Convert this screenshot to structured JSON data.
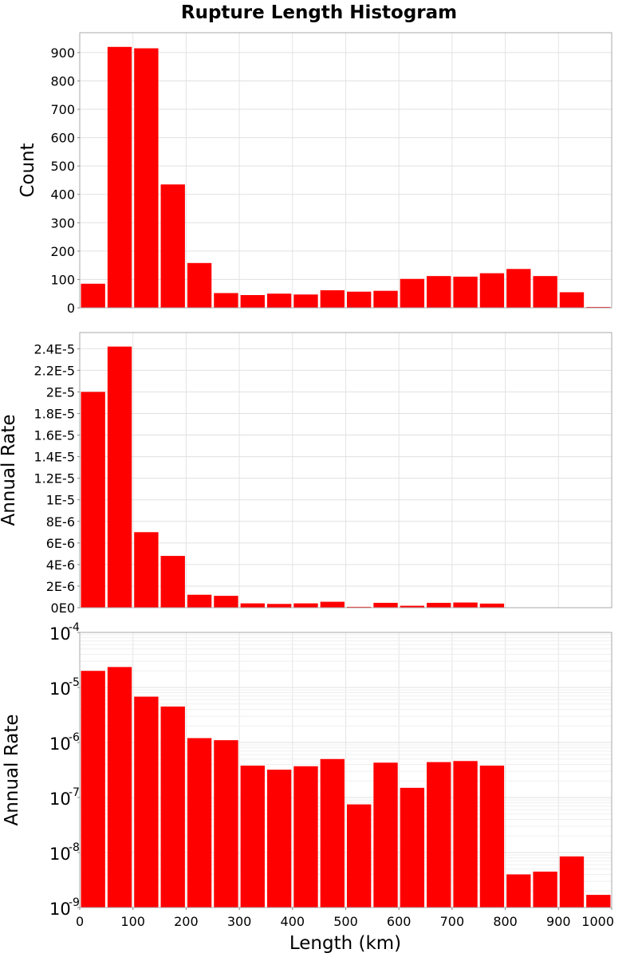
{
  "chart_data": {
    "type": "bar",
    "title": "Rupture Length Histogram",
    "xlabel": "Length (km)",
    "xlim": [
      0,
      1000
    ],
    "x_ticks": [
      "0",
      "100",
      "200",
      "300",
      "400",
      "500",
      "600",
      "700",
      "800",
      "900",
      "1000"
    ],
    "bin_width": 50,
    "bin_centers": [
      25,
      75,
      125,
      175,
      225,
      275,
      325,
      375,
      425,
      475,
      525,
      575,
      625,
      675,
      725,
      775,
      825,
      875,
      925,
      975
    ],
    "color": "#ff0000",
    "panels": [
      {
        "ylabel": "Count",
        "scale": "linear",
        "ylim": [
          0,
          970
        ],
        "y_ticks": [
          "0",
          "100",
          "200",
          "300",
          "400",
          "500",
          "600",
          "700",
          "800",
          "900"
        ],
        "tick_values": [
          0,
          100,
          200,
          300,
          400,
          500,
          600,
          700,
          800,
          900
        ],
        "values": [
          85,
          920,
          915,
          435,
          158,
          52,
          45,
          50,
          47,
          62,
          57,
          60,
          102,
          112,
          110,
          122,
          137,
          112,
          55,
          3
        ]
      },
      {
        "ylabel": "Annual Rate",
        "scale": "linear",
        "ylim": [
          0,
          2.55e-05
        ],
        "y_ticks": [
          "0E0",
          "2E-6",
          "4E-6",
          "6E-6",
          "8E-6",
          "1E-5",
          "1.2E-5",
          "1.4E-5",
          "1.6E-5",
          "1.8E-5",
          "2E-5",
          "2.2E-5",
          "2.4E-5"
        ],
        "tick_values": [
          0,
          2e-06,
          4e-06,
          6e-06,
          8e-06,
          1e-05,
          1.2e-05,
          1.4e-05,
          1.6e-05,
          1.8e-05,
          2e-05,
          2.2e-05,
          2.4e-05
        ],
        "values": [
          2e-05,
          2.42e-05,
          7e-06,
          4.8e-06,
          1.2e-06,
          1.1e-06,
          4e-07,
          3.5e-07,
          4e-07,
          5.5e-07,
          8e-08,
          4.5e-07,
          1.8e-07,
          4.5e-07,
          4.8e-07,
          3.8e-07,
          4e-09,
          4.5e-09,
          8.5e-09,
          1.8e-09
        ]
      },
      {
        "ylabel": "Annual Rate",
        "scale": "log",
        "ylim": [
          1e-09,
          0.0001
        ],
        "y_ticks": [
          {
            "base": "10",
            "exp": "-9"
          },
          {
            "base": "10",
            "exp": "-8"
          },
          {
            "base": "10",
            "exp": "-7"
          },
          {
            "base": "10",
            "exp": "-6"
          },
          {
            "base": "10",
            "exp": "-5"
          },
          {
            "base": "10",
            "exp": "-4"
          }
        ],
        "tick_values": [
          1e-09,
          1e-08,
          1e-07,
          1e-06,
          1e-05,
          0.0001
        ],
        "values": [
          2e-05,
          2.35e-05,
          6.8e-06,
          4.5e-06,
          1.2e-06,
          1.1e-06,
          3.8e-07,
          3.2e-07,
          3.7e-07,
          5e-07,
          7.5e-08,
          4.3e-07,
          1.5e-07,
          4.4e-07,
          4.6e-07,
          3.8e-07,
          4e-09,
          4.5e-09,
          8.5e-09,
          1.7e-09
        ]
      }
    ]
  }
}
